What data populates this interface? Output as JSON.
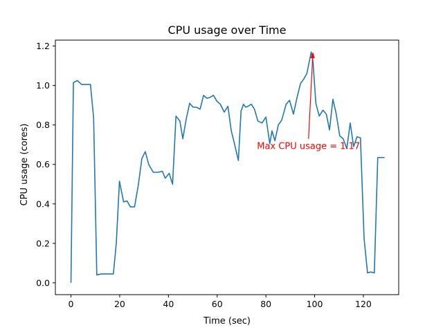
{
  "chart_data": {
    "type": "line",
    "title": "CPU usage over Time",
    "xlabel": "Time (sec)",
    "ylabel": "CPU usage (cores)",
    "xlim": [
      -6.4,
      134.5
    ],
    "ylim": [
      -0.06,
      1.23
    ],
    "xticks": [
      0,
      20,
      40,
      60,
      80,
      100,
      120
    ],
    "xtick_labels": [
      "0",
      "20",
      "40",
      "60",
      "80",
      "100",
      "120"
    ],
    "yticks": [
      0.0,
      0.2,
      0.4,
      0.6,
      0.8,
      1.0,
      1.2
    ],
    "ytick_labels": [
      "0.0",
      "0.2",
      "0.4",
      "0.6",
      "0.8",
      "1.0",
      "1.2"
    ],
    "grid": false,
    "series": [
      {
        "color": "#1f77b4",
        "x": [
          0,
          1,
          2.6,
          4.4,
          6.8,
          8,
          9.3,
          10.6,
          12.5,
          15,
          16.1,
          17.4,
          18.6,
          19.9,
          21.6,
          23,
          24.4,
          26.1,
          27.7,
          29.1,
          30.5,
          31.9,
          33.8,
          35.6,
          37.5,
          38.7,
          40.3,
          41.7,
          43.1,
          44.7,
          45.9,
          47.3,
          48.7,
          50.1,
          51.5,
          53,
          54.4,
          55.8,
          57.1,
          58.5,
          59.9,
          61.3,
          62.9,
          64.4,
          65.8,
          67.1,
          68.7,
          69.8,
          70.8,
          71.7,
          72.7,
          74,
          75.3,
          76.7,
          78.4,
          80,
          81.6,
          82.5,
          83.7,
          85.1,
          86.5,
          88.3,
          89.7,
          91.3,
          92.7,
          94.2,
          95.4,
          96.8,
          98.6,
          99.3,
          100.5,
          101.9,
          103.4,
          104.8,
          106.1,
          107.5,
          108.8,
          110.3,
          111.7,
          113.2,
          114.6,
          116,
          117.4,
          118.8,
          120.3,
          121.7,
          123.1,
          124.5,
          125.9,
          127.3,
          128.7
        ],
        "values": [
          0.0,
          1.015,
          1.025,
          1.005,
          1.005,
          1.005,
          0.835,
          0.04,
          0.045,
          0.045,
          0.045,
          0.045,
          0.2,
          0.515,
          0.41,
          0.415,
          0.385,
          0.385,
          0.5,
          0.63,
          0.665,
          0.6,
          0.56,
          0.56,
          0.565,
          0.53,
          0.555,
          0.5,
          0.845,
          0.82,
          0.73,
          0.83,
          0.91,
          0.89,
          0.89,
          0.88,
          0.95,
          0.935,
          0.94,
          0.95,
          0.92,
          0.905,
          0.865,
          0.895,
          0.77,
          0.705,
          0.62,
          0.87,
          0.905,
          0.89,
          0.895,
          0.905,
          0.88,
          0.82,
          0.81,
          0.84,
          0.705,
          0.77,
          0.72,
          0.8,
          0.825,
          0.905,
          0.925,
          0.855,
          0.935,
          1.01,
          1.03,
          1.06,
          1.17,
          1.125,
          0.91,
          0.845,
          0.875,
          0.855,
          0.775,
          0.93,
          0.86,
          0.745,
          0.73,
          0.68,
          0.81,
          0.69,
          0.74,
          0.735,
          0.225,
          0.05,
          0.055,
          0.05,
          0.635,
          0.635,
          0.635
        ]
      }
    ],
    "annotations": [
      {
        "text": "Max CPU usage = 1.17",
        "color": "#ff0000",
        "point": [
          99.3,
          1.17
        ],
        "text_anchor": [
          97.5,
          0.73
        ]
      }
    ]
  }
}
